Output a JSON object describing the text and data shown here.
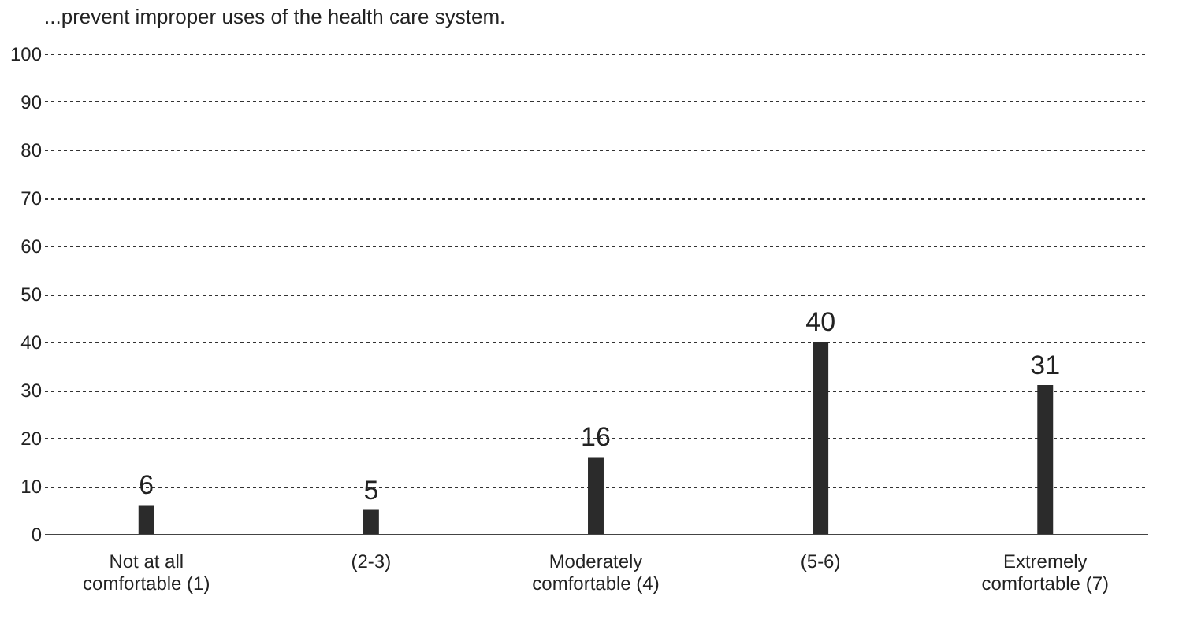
{
  "chart_data": {
    "type": "bar",
    "title": "...prevent improper uses of the health care system.",
    "categories": [
      "Not at all comfortable (1)",
      "(2-3)",
      "Moderately comfortable (4)",
      "(5-6)",
      "Extremely comfortable (7)"
    ],
    "values": [
      6,
      5,
      16,
      40,
      31
    ],
    "color": "#2b2b2b",
    "data_labels": true,
    "ylim": [
      0,
      100
    ],
    "yticks": [
      0,
      10,
      20,
      30,
      40,
      50,
      60,
      70,
      80,
      90,
      100
    ],
    "grid": "y"
  }
}
